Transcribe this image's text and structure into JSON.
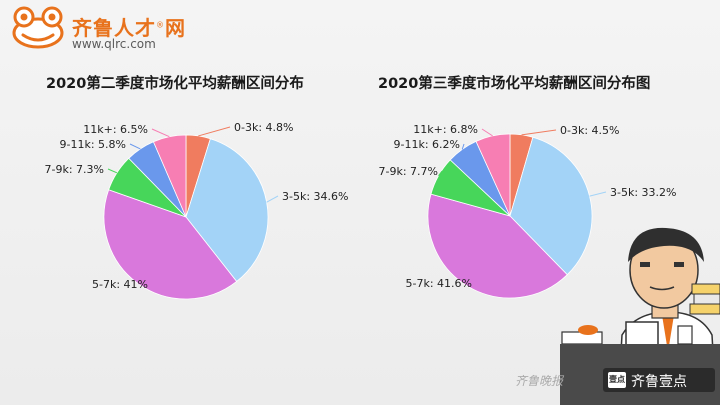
{
  "header": {
    "site_name": "齐鲁人才",
    "site_suffix": "网",
    "url": "www.qlrc.com"
  },
  "chart_data": [
    {
      "type": "pie",
      "title": "2020第二季度市场化平均薪酬区间分布",
      "categories": [
        "0-3k",
        "3-5k",
        "5-7k",
        "7-9k",
        "9-11k",
        "11k+"
      ],
      "values": [
        4.8,
        34.6,
        41,
        7.3,
        5.8,
        6.5
      ],
      "labels": [
        "0-3k: 4.8%",
        "3-5k: 34.6%",
        "5-7k: 41%",
        "7-9k: 7.3%",
        "9-11k: 5.8%",
        "11k+: 6.5%"
      ],
      "colors": [
        "#f07c5f",
        "#a3d3f7",
        "#d978dc",
        "#47d65a",
        "#6a98ec",
        "#f77eb3"
      ]
    },
    {
      "type": "pie",
      "title": "2020第三季度市场化平均薪酬区间分布图",
      "categories": [
        "0-3k",
        "3-5k",
        "5-7k",
        "7-9k",
        "9-11k",
        "11k+"
      ],
      "values": [
        4.5,
        33.2,
        41.6,
        7.7,
        6.2,
        6.8
      ],
      "labels": [
        "0-3k: 4.5%",
        "3-5k: 33.2%",
        "5-7k: 41.6%",
        "7-9k: 7.7%",
        "9-11k: 6.2%",
        "11k+: 6.8%"
      ],
      "colors": [
        "#f07c5f",
        "#a3d3f7",
        "#d978dc",
        "#47d65a",
        "#6a98ec",
        "#f77eb3"
      ]
    }
  ],
  "footer": {
    "watermark": "齐鲁晚报",
    "badge": "壹点",
    "brand": "齐鲁壹点"
  },
  "colors": {
    "brand_orange": "#e8721c",
    "footer_dark": "#2b2b2b"
  }
}
